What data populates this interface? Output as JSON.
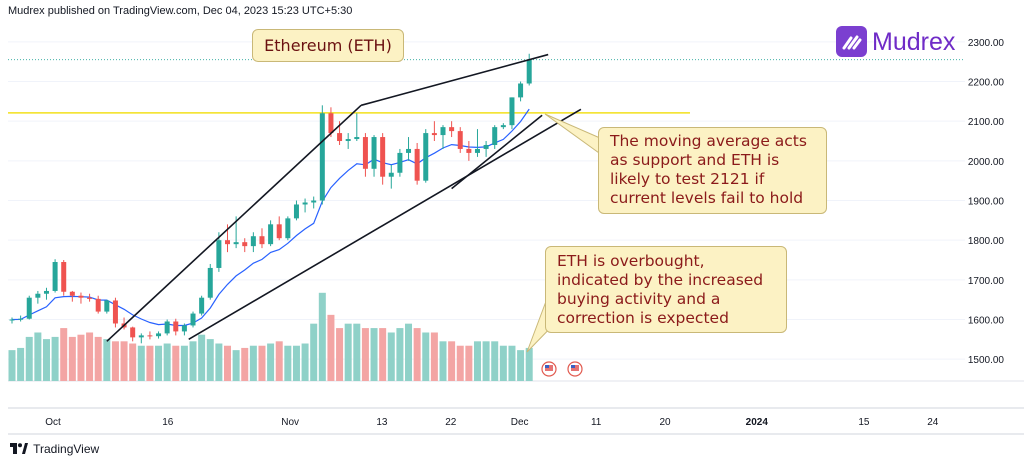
{
  "header": {
    "publisher_text": "Mudrex published on TradingView.com, Dec 04, 2023 15:23 UTC+5:30"
  },
  "brand": {
    "logo_text": "Mudrex",
    "color": "#6f2bc7"
  },
  "footer": {
    "tradingview_text": "TradingView"
  },
  "chart_data": {
    "type": "candlestick",
    "title": "Ethereum (ETH)",
    "annotations": [
      "The moving average acts as support and ETH is likely to test 2121 if current levels fail to hold",
      "ETH is overbought, indicated by the increased buying activity and a correction is expected"
    ],
    "y_ticks": [
      "1500.00",
      "1600.00",
      "1700.00",
      "1800.00",
      "1900.00",
      "2000.00",
      "2100.00",
      "2200.00",
      "2300.00"
    ],
    "ylim": [
      1445,
      2345
    ],
    "x_ticks": [
      {
        "label": "Oct",
        "day": 0
      },
      {
        "label": "16",
        "day": 15
      },
      {
        "label": "Nov",
        "day": 31
      },
      {
        "label": "13",
        "day": 43
      },
      {
        "label": "22",
        "day": 52
      },
      {
        "label": "Dec",
        "day": 61
      },
      {
        "label": "11",
        "day": 71
      },
      {
        "label": "20",
        "day": 80
      },
      {
        "label": "2024",
        "day": 92
      },
      {
        "label": "15",
        "day": 106
      },
      {
        "label": "24",
        "day": 115
      }
    ],
    "support_level": 2121,
    "last_price_level": 2255,
    "colors": {
      "up": "#26a69a",
      "down": "#ef5350",
      "vol_up": "#8fd1c8",
      "vol_down": "#f3a5a4",
      "ma": "#2962ff",
      "support": "#f2e11c"
    },
    "candles": [
      {
        "o": 1598,
        "h": 1605,
        "l": 1590,
        "c": 1600
      },
      {
        "o": 1600,
        "h": 1610,
        "l": 1595,
        "c": 1602
      },
      {
        "o": 1602,
        "h": 1660,
        "l": 1600,
        "c": 1655
      },
      {
        "o": 1655,
        "h": 1672,
        "l": 1640,
        "c": 1665
      },
      {
        "o": 1665,
        "h": 1680,
        "l": 1650,
        "c": 1672
      },
      {
        "o": 1672,
        "h": 1752,
        "l": 1668,
        "c": 1745
      },
      {
        "o": 1745,
        "h": 1750,
        "l": 1660,
        "c": 1670
      },
      {
        "o": 1670,
        "h": 1672,
        "l": 1645,
        "c": 1660
      },
      {
        "o": 1660,
        "h": 1668,
        "l": 1640,
        "c": 1655
      },
      {
        "o": 1655,
        "h": 1665,
        "l": 1645,
        "c": 1652
      },
      {
        "o": 1652,
        "h": 1660,
        "l": 1615,
        "c": 1620
      },
      {
        "o": 1620,
        "h": 1650,
        "l": 1615,
        "c": 1648
      },
      {
        "o": 1648,
        "h": 1655,
        "l": 1580,
        "c": 1590
      },
      {
        "o": 1590,
        "h": 1605,
        "l": 1575,
        "c": 1580
      },
      {
        "o": 1580,
        "h": 1582,
        "l": 1545,
        "c": 1555
      },
      {
        "o": 1555,
        "h": 1565,
        "l": 1540,
        "c": 1560
      },
      {
        "o": 1560,
        "h": 1570,
        "l": 1550,
        "c": 1558
      },
      {
        "o": 1558,
        "h": 1570,
        "l": 1552,
        "c": 1565
      },
      {
        "o": 1565,
        "h": 1600,
        "l": 1560,
        "c": 1595
      },
      {
        "o": 1595,
        "h": 1602,
        "l": 1560,
        "c": 1570
      },
      {
        "o": 1570,
        "h": 1590,
        "l": 1560,
        "c": 1585
      },
      {
        "o": 1585,
        "h": 1620,
        "l": 1580,
        "c": 1615
      },
      {
        "o": 1615,
        "h": 1660,
        "l": 1610,
        "c": 1655
      },
      {
        "o": 1655,
        "h": 1740,
        "l": 1650,
        "c": 1730
      },
      {
        "o": 1730,
        "h": 1820,
        "l": 1720,
        "c": 1800
      },
      {
        "o": 1800,
        "h": 1840,
        "l": 1770,
        "c": 1790
      },
      {
        "o": 1790,
        "h": 1860,
        "l": 1780,
        "c": 1795
      },
      {
        "o": 1795,
        "h": 1805,
        "l": 1770,
        "c": 1785
      },
      {
        "o": 1785,
        "h": 1820,
        "l": 1770,
        "c": 1810
      },
      {
        "o": 1810,
        "h": 1830,
        "l": 1780,
        "c": 1790
      },
      {
        "o": 1790,
        "h": 1850,
        "l": 1785,
        "c": 1840
      },
      {
        "o": 1840,
        "h": 1860,
        "l": 1800,
        "c": 1805
      },
      {
        "o": 1805,
        "h": 1860,
        "l": 1800,
        "c": 1855
      },
      {
        "o": 1855,
        "h": 1900,
        "l": 1850,
        "c": 1890
      },
      {
        "o": 1890,
        "h": 1905,
        "l": 1870,
        "c": 1895
      },
      {
        "o": 1895,
        "h": 1910,
        "l": 1880,
        "c": 1900
      },
      {
        "o": 1900,
        "h": 2140,
        "l": 1890,
        "c": 2120
      },
      {
        "o": 2120,
        "h": 2135,
        "l": 2060,
        "c": 2070
      },
      {
        "o": 2070,
        "h": 2100,
        "l": 2040,
        "c": 2050
      },
      {
        "o": 2050,
        "h": 2070,
        "l": 2030,
        "c": 2055
      },
      {
        "o": 2055,
        "h": 2120,
        "l": 2050,
        "c": 2060
      },
      {
        "o": 2060,
        "h": 2070,
        "l": 1960,
        "c": 1980
      },
      {
        "o": 1980,
        "h": 2065,
        "l": 1960,
        "c": 2060
      },
      {
        "o": 2060,
        "h": 2070,
        "l": 1940,
        "c": 1960
      },
      {
        "o": 1960,
        "h": 1990,
        "l": 1930,
        "c": 1970
      },
      {
        "o": 1970,
        "h": 2030,
        "l": 1960,
        "c": 2020
      },
      {
        "o": 2020,
        "h": 2060,
        "l": 2000,
        "c": 2030
      },
      {
        "o": 2030,
        "h": 2045,
        "l": 1940,
        "c": 1950
      },
      {
        "o": 1950,
        "h": 2080,
        "l": 1945,
        "c": 2070
      },
      {
        "o": 2070,
        "h": 2100,
        "l": 2050,
        "c": 2065
      },
      {
        "o": 2065,
        "h": 2090,
        "l": 2030,
        "c": 2085
      },
      {
        "o": 2085,
        "h": 2100,
        "l": 2060,
        "c": 2075
      },
      {
        "o": 2075,
        "h": 2085,
        "l": 2020,
        "c": 2030
      },
      {
        "o": 2030,
        "h": 2050,
        "l": 2000,
        "c": 2020
      },
      {
        "o": 2020,
        "h": 2080,
        "l": 2010,
        "c": 2030
      },
      {
        "o": 2030,
        "h": 2050,
        "l": 2010,
        "c": 2040
      },
      {
        "o": 2040,
        "h": 2090,
        "l": 2030,
        "c": 2085
      },
      {
        "o": 2085,
        "h": 2095,
        "l": 2080,
        "c": 2090
      },
      {
        "o": 2090,
        "h": 2160,
        "l": 2080,
        "c": 2160
      },
      {
        "o": 2160,
        "h": 2200,
        "l": 2150,
        "c": 2195
      },
      {
        "o": 2195,
        "h": 2270,
        "l": 2190,
        "c": 2255
      }
    ],
    "volumes": [
      14,
      15,
      20,
      22,
      19,
      20,
      24,
      20,
      21,
      22,
      20,
      19,
      18,
      18,
      17,
      16,
      16,
      16,
      17,
      16,
      16,
      18,
      21,
      19,
      17,
      16,
      14,
      15,
      16,
      16,
      17,
      18,
      16,
      16,
      17,
      26,
      40,
      30,
      24,
      26,
      26,
      24,
      24,
      24,
      22,
      24,
      26,
      24,
      22,
      22,
      18,
      18,
      16,
      16,
      18,
      18,
      18,
      16,
      16,
      14,
      15
    ]
  }
}
